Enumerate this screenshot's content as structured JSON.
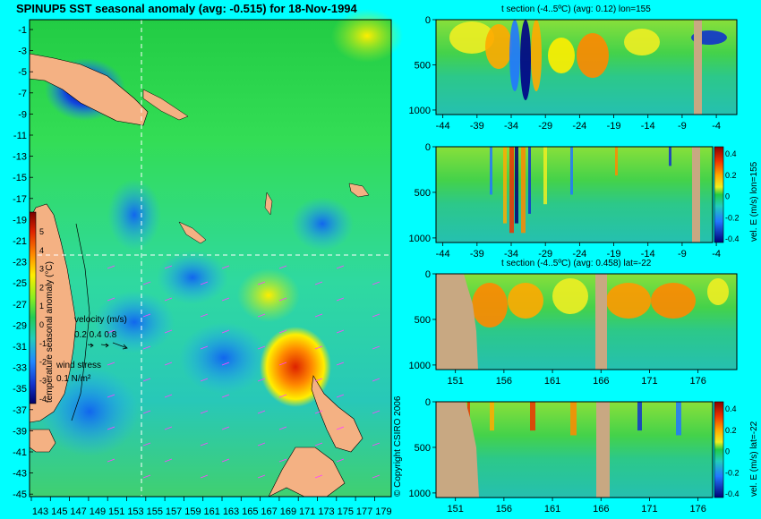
{
  "main_title": "SPINUP5 SST seasonal anomaly (avg: -0.515) for 18-Nov-1994",
  "copyright": "© Copyright CSIRO 2006",
  "colors": {
    "background": "#00ffff",
    "land": "#f4b183",
    "section_land": "#c8a882",
    "vector": "#ff44ff",
    "crosshair": "#ffffff"
  },
  "map": {
    "lat_ticks": [
      "-1",
      "-3",
      "-5",
      "-7",
      "-9",
      "-11",
      "-13",
      "-15",
      "-17",
      "-19",
      "-21",
      "-23",
      "-25",
      "-27",
      "-29",
      "-31",
      "-33",
      "-35",
      "-37",
      "-39",
      "-41",
      "-43",
      "-45"
    ],
    "lon_ticks": [
      "143",
      "145",
      "147",
      "149",
      "151",
      "153",
      "155",
      "157",
      "159",
      "161",
      "163",
      "165",
      "167",
      "169",
      "171",
      "173",
      "175",
      "177",
      "179"
    ],
    "colorbar": {
      "ticks": [
        "5",
        "4",
        "3",
        "2",
        "1",
        "0",
        "-1",
        "-2",
        "-3",
        "-4"
      ],
      "label": "temperature seasonal anomaly (°C)"
    },
    "velocity_legend": {
      "label": "velocity (m/s)",
      "values": "0.2 0.4 0.8"
    },
    "wind_legend": {
      "label": "wind stress",
      "value": "0.1 N/m²"
    }
  },
  "chart_data": [
    {
      "type": "heatmap",
      "title": "t section (-4..5ºC) (avg: 0.12) lon=155",
      "x_ticks": [
        "-44",
        "-39",
        "-34",
        "-29",
        "-24",
        "-19",
        "-14",
        "-9",
        "-4"
      ],
      "y_ticks": [
        "0",
        "500",
        "1000"
      ],
      "xlim": [
        -45,
        -1
      ],
      "ylim": [
        1050,
        0
      ]
    },
    {
      "type": "heatmap",
      "title": "",
      "x_ticks": [
        "-44",
        "-39",
        "-34",
        "-29",
        "-24",
        "-19",
        "-14",
        "-9",
        "-4"
      ],
      "y_ticks": [
        "0",
        "500",
        "1000"
      ],
      "colorbar_ticks": [
        "0.4",
        "0.2",
        "0",
        "-0.2",
        "-0.4"
      ],
      "colorbar_label": "vel. E (m/s) lon=155",
      "xlim": [
        -45,
        -1
      ],
      "ylim": [
        1050,
        0
      ]
    },
    {
      "type": "heatmap",
      "title": "t section (-4..5ºC) (avg: 0.458) lat=-22",
      "x_ticks": [
        "151",
        "156",
        "161",
        "166",
        "171",
        "176"
      ],
      "y_ticks": [
        "0",
        "500",
        "1000"
      ],
      "xlim": [
        149,
        180
      ],
      "ylim": [
        1050,
        0
      ]
    },
    {
      "type": "heatmap",
      "title": "",
      "x_ticks": [
        "151",
        "156",
        "161",
        "166",
        "171",
        "176"
      ],
      "y_ticks": [
        "0",
        "500",
        "1000"
      ],
      "colorbar_ticks": [
        "0.4",
        "0.2",
        "0",
        "-0.2",
        "-0.4"
      ],
      "colorbar_label": "vel. E (m/s) lat=-22",
      "xlim": [
        149,
        180
      ],
      "ylim": [
        1050,
        0
      ]
    }
  ]
}
